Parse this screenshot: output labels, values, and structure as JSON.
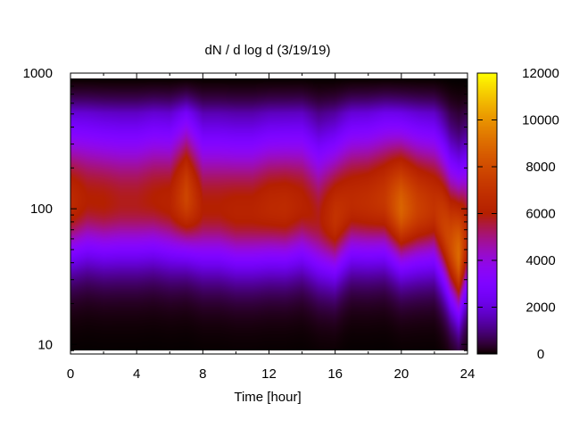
{
  "chart_data": {
    "type": "heatmap",
    "title": "dN / d log d (3/19/19)",
    "xlabel": "Time [hour]",
    "ylabel": "",
    "x_ticks": [
      0,
      4,
      8,
      12,
      16,
      20,
      24
    ],
    "x_tick_labels": [
      "0",
      "4",
      "8",
      "12",
      "16",
      "20",
      "24"
    ],
    "xlim": [
      0,
      24
    ],
    "y_scale": "log",
    "ylim": [
      8.5,
      1000
    ],
    "y_ticks": [
      10,
      100,
      1000
    ],
    "y_tick_labels": [
      "10",
      "100",
      "1000"
    ],
    "colorbar": {
      "range": [
        0,
        12000
      ],
      "ticks": [
        0,
        2000,
        4000,
        6000,
        8000,
        10000,
        12000
      ],
      "tick_labels": [
        "0",
        "2000",
        "4000",
        "6000",
        "8000",
        "10000",
        "12000"
      ],
      "palette": "gnuplot black-purple-red-yellow"
    },
    "peak_diameter_by_hour": {
      "x": [
        0,
        1,
        2,
        3,
        4,
        5,
        6,
        7,
        8,
        9,
        10,
        11,
        12,
        13,
        14,
        15,
        16,
        17,
        18,
        19,
        20,
        21,
        22,
        23,
        23.5,
        24
      ],
      "y": [
        110,
        115,
        110,
        110,
        110,
        115,
        110,
        120,
        100,
        100,
        95,
        95,
        100,
        100,
        105,
        85,
        85,
        110,
        110,
        115,
        100,
        100,
        100,
        55,
        45,
        60
      ]
    },
    "peak_value_by_hour": {
      "x": [
        0,
        1,
        2,
        3,
        4,
        5,
        6,
        7,
        8,
        9,
        10,
        11,
        12,
        13,
        14,
        15,
        16,
        17,
        18,
        19,
        20,
        21,
        22,
        23,
        23.5,
        24
      ],
      "values": [
        6600,
        6000,
        6000,
        5800,
        5800,
        6000,
        6200,
        7800,
        6000,
        6000,
        6200,
        6200,
        6500,
        6600,
        6200,
        5800,
        7000,
        6600,
        6800,
        7200,
        8800,
        7600,
        7000,
        8000,
        9000,
        6500
      ]
    },
    "grid": false,
    "legend": "none"
  }
}
